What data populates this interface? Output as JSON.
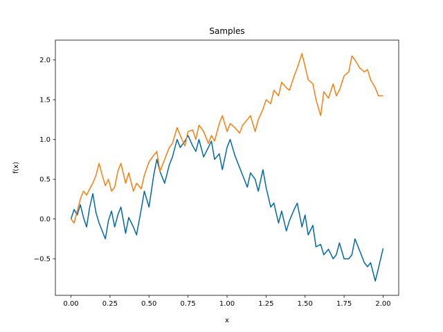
{
  "chart_data": {
    "type": "line",
    "title": "Samples",
    "xlabel": "x",
    "ylabel": "f(x)",
    "xlim": [
      -0.1,
      2.1
    ],
    "ylim": [
      -0.96,
      2.25
    ],
    "grid": false,
    "xticks": [
      0.0,
      0.25,
      0.5,
      0.75,
      1.0,
      1.25,
      1.5,
      1.75,
      2.0
    ],
    "xtick_labels": [
      "0.00",
      "0.25",
      "0.50",
      "0.75",
      "1.00",
      "1.25",
      "1.50",
      "1.75",
      "2.00"
    ],
    "yticks": [
      -0.5,
      0.0,
      0.5,
      1.0,
      1.5,
      2.0
    ],
    "ytick_labels": [
      "−0.5",
      "0.0",
      "0.5",
      "1.0",
      "1.5",
      "2.0"
    ],
    "series": [
      {
        "color": "#0068a5",
        "x": [
          0.0,
          0.02,
          0.04,
          0.06,
          0.08,
          0.1,
          0.12,
          0.14,
          0.16,
          0.18,
          0.2,
          0.22,
          0.24,
          0.26,
          0.28,
          0.3,
          0.32,
          0.35,
          0.37,
          0.4,
          0.42,
          0.45,
          0.47,
          0.5,
          0.53,
          0.55,
          0.57,
          0.6,
          0.63,
          0.65,
          0.68,
          0.7,
          0.73,
          0.75,
          0.78,
          0.8,
          0.82,
          0.85,
          0.88,
          0.9,
          0.92,
          0.95,
          0.97,
          1.0,
          1.02,
          1.05,
          1.08,
          1.1,
          1.13,
          1.15,
          1.18,
          1.2,
          1.23,
          1.25,
          1.28,
          1.3,
          1.33,
          1.35,
          1.38,
          1.4,
          1.43,
          1.45,
          1.48,
          1.5,
          1.52,
          1.55,
          1.57,
          1.6,
          1.62,
          1.65,
          1.68,
          1.7,
          1.72,
          1.75,
          1.78,
          1.8,
          1.82,
          1.85,
          1.88,
          1.9,
          1.92,
          1.95,
          1.97,
          2.0
        ],
        "y": [
          0.0,
          0.12,
          0.05,
          0.18,
          0.02,
          -0.1,
          0.15,
          0.32,
          0.08,
          -0.05,
          -0.15,
          -0.25,
          -0.02,
          0.1,
          -0.1,
          0.05,
          0.15,
          -0.18,
          0.02,
          -0.1,
          -0.2,
          0.12,
          0.35,
          0.15,
          0.55,
          0.75,
          0.6,
          0.45,
          0.68,
          0.78,
          1.0,
          0.9,
          0.98,
          1.05,
          0.92,
          0.85,
          1.0,
          0.78,
          0.9,
          0.98,
          0.75,
          0.82,
          0.62,
          0.9,
          1.0,
          0.8,
          0.65,
          0.55,
          0.4,
          0.58,
          0.5,
          0.35,
          0.62,
          0.4,
          0.15,
          0.2,
          -0.05,
          0.1,
          -0.15,
          -0.02,
          0.12,
          0.2,
          -0.1,
          0.05,
          -0.2,
          -0.08,
          -0.35,
          -0.32,
          -0.45,
          -0.38,
          -0.5,
          -0.45,
          -0.3,
          -0.5,
          -0.5,
          -0.45,
          -0.25,
          -0.4,
          -0.55,
          -0.6,
          -0.55,
          -0.78,
          -0.62,
          -0.37
        ]
      },
      {
        "color": "#f57f0e",
        "x": [
          0.0,
          0.02,
          0.04,
          0.06,
          0.08,
          0.1,
          0.12,
          0.14,
          0.16,
          0.18,
          0.2,
          0.22,
          0.24,
          0.26,
          0.28,
          0.3,
          0.32,
          0.35,
          0.37,
          0.4,
          0.42,
          0.45,
          0.47,
          0.5,
          0.53,
          0.55,
          0.57,
          0.6,
          0.63,
          0.65,
          0.68,
          0.7,
          0.73,
          0.75,
          0.78,
          0.8,
          0.82,
          0.85,
          0.88,
          0.9,
          0.92,
          0.95,
          0.97,
          1.0,
          1.02,
          1.05,
          1.08,
          1.1,
          1.13,
          1.15,
          1.18,
          1.2,
          1.23,
          1.25,
          1.28,
          1.3,
          1.33,
          1.35,
          1.38,
          1.4,
          1.43,
          1.45,
          1.48,
          1.5,
          1.52,
          1.55,
          1.57,
          1.6,
          1.62,
          1.65,
          1.68,
          1.7,
          1.72,
          1.75,
          1.78,
          1.8,
          1.82,
          1.85,
          1.88,
          1.9,
          1.92,
          1.95,
          1.97,
          2.0
        ],
        "y": [
          0.0,
          -0.05,
          0.1,
          0.25,
          0.35,
          0.3,
          0.38,
          0.45,
          0.55,
          0.7,
          0.55,
          0.42,
          0.5,
          0.35,
          0.4,
          0.6,
          0.7,
          0.45,
          0.58,
          0.35,
          0.45,
          0.38,
          0.55,
          0.72,
          0.8,
          0.85,
          0.6,
          0.75,
          0.9,
          0.95,
          1.15,
          1.05,
          0.92,
          1.1,
          1.12,
          1.0,
          1.18,
          1.1,
          0.95,
          1.05,
          0.98,
          1.2,
          1.3,
          1.1,
          1.2,
          1.15,
          1.08,
          1.18,
          1.25,
          1.3,
          1.1,
          1.25,
          1.38,
          1.5,
          1.45,
          1.62,
          1.55,
          1.72,
          1.65,
          1.62,
          1.8,
          1.9,
          2.08,
          1.92,
          1.75,
          1.7,
          1.5,
          1.3,
          1.6,
          1.52,
          1.7,
          1.55,
          1.62,
          1.8,
          1.85,
          2.05,
          2.0,
          1.9,
          1.85,
          1.88,
          1.75,
          1.65,
          1.55,
          1.55
        ]
      }
    ]
  }
}
